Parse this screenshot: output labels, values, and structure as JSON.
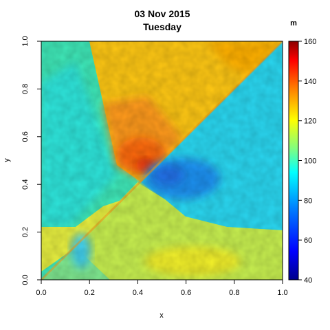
{
  "chart_data": {
    "type": "heatmap",
    "title": "03 Nov 2015",
    "subtitle": "Tuesday",
    "xlabel": "x",
    "ylabel": "y",
    "xlim": [
      0.0,
      1.0
    ],
    "ylim": [
      0.0,
      1.0
    ],
    "x_ticks": [
      "0.0",
      "0.2",
      "0.4",
      "0.6",
      "0.8",
      "1.0"
    ],
    "y_ticks": [
      "0.0",
      "0.2",
      "0.4",
      "0.6",
      "0.8",
      "1.0"
    ],
    "colorbar": {
      "unit": "m",
      "range": [
        40,
        160
      ],
      "ticks": [
        "40",
        "60",
        "80",
        "100",
        "120",
        "140",
        "160"
      ],
      "colors": [
        "#00008B",
        "#0000FF",
        "#0080FF",
        "#00FFFF",
        "#80FF80",
        "#FFFF00",
        "#FF8000",
        "#FF0000",
        "#8B0000"
      ]
    },
    "regions": [
      {
        "name": "lower-left background",
        "value": 105
      },
      {
        "name": "upper-left background",
        "value": 100
      },
      {
        "name": "upper triangle",
        "value": 118
      },
      {
        "name": "upper triangle peak",
        "value": 135
      },
      {
        "name": "lower-right triangle",
        "value": 88
      },
      {
        "name": "lower-right trough",
        "value": 75
      },
      {
        "name": "bottom-right band",
        "value": 108
      }
    ],
    "grid": false,
    "legend": "colorbar-right"
  }
}
